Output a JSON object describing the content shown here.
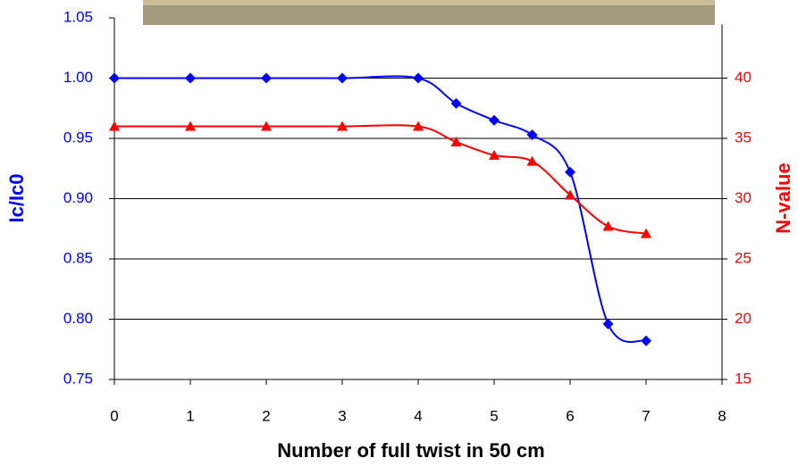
{
  "chart_data": {
    "type": "line",
    "x_label": "Number of full twist in 50 cm",
    "y_label": "Ic/Ic0",
    "y2_label": "N-value",
    "x": [
      0,
      1,
      2,
      3,
      4,
      4.5,
      5,
      5.5,
      6,
      6.5,
      7
    ],
    "series": [
      {
        "name": "Ic/Ic0",
        "color": "#0000ff",
        "marker": "diamond",
        "values": [
          1.0,
          1.0,
          1.0,
          1.0,
          1.0,
          0.979,
          0.965,
          0.953,
          0.922,
          0.796,
          0.782
        ]
      },
      {
        "name": "N-value",
        "color": "#ff0000",
        "marker": "triangle",
        "axis": "y2",
        "values": [
          36,
          36,
          36,
          36,
          36,
          34.7,
          33.6,
          33.1,
          30.3,
          27.7,
          27.1
        ]
      }
    ],
    "xlim": [
      0,
      8
    ],
    "xticks": [
      0,
      1,
      2,
      3,
      4,
      5,
      6,
      7,
      8
    ],
    "ylim": [
      0.75,
      1.05
    ],
    "yticks": [
      0.75,
      {
        "value": 0.8,
        "label": "0.80"
      },
      0.85,
      {
        "value": 0.9,
        "label": "0.90"
      },
      0.95,
      {
        "value": 1.0,
        "label": "1.00"
      },
      1.05
    ],
    "y2lim": [
      15,
      45
    ],
    "y2ticks": [
      15,
      20,
      25,
      30,
      35,
      40
    ],
    "grid": true
  }
}
